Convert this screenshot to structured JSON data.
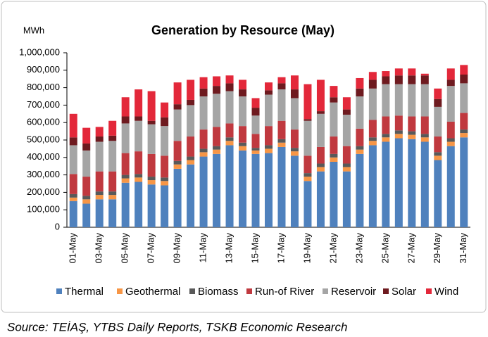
{
  "chart_data": {
    "type": "stacked_bar",
    "title": "Generation by Resource (May)",
    "ylabel": "MWh",
    "source": "Source: TEİAŞ, YTBS Daily Reports, TSKB Economic Research",
    "categories": [
      "01-May",
      null,
      "03-May",
      null,
      "05-May",
      null,
      "07-May",
      null,
      "09-May",
      null,
      "11-May",
      null,
      "13-May",
      null,
      "15-May",
      null,
      "17-May",
      null,
      "19-May",
      null,
      "21-May",
      null,
      "23-May",
      null,
      "25-May",
      null,
      "27-May",
      null,
      "29-May",
      null,
      "31-May"
    ],
    "ylim": [
      0,
      1000000
    ],
    "yticks": [
      0,
      {
        "value": 100000,
        "label": "100,000"
      },
      {
        "value": 200000,
        "label": "200,000"
      },
      {
        "value": 300000,
        "label": "300,000"
      },
      {
        "value": 400000,
        "label": "400,000"
      },
      {
        "value": 500000,
        "label": "500,000"
      },
      {
        "value": 600000,
        "label": "600,000"
      },
      {
        "value": 700000,
        "label": "700,000"
      },
      {
        "value": 800000,
        "label": "800,000"
      },
      {
        "value": 900000,
        "label": "900,000"
      },
      {
        "value": 1000000,
        "label": "1,000,000"
      }
    ],
    "grid": false,
    "legend": "bottom",
    "series": [
      {
        "name": "Thermal",
        "color": "#4f81bd",
        "values": [
          150000,
          135000,
          160000,
          160000,
          255000,
          260000,
          245000,
          240000,
          335000,
          360000,
          405000,
          420000,
          470000,
          440000,
          420000,
          425000,
          460000,
          410000,
          265000,
          320000,
          375000,
          320000,
          420000,
          470000,
          490000,
          510000,
          505000,
          490000,
          385000,
          465000,
          515000
        ]
      },
      {
        "name": "Geothermal",
        "color": "#f79646",
        "values": [
          20000,
          25000,
          25000,
          25000,
          25000,
          25000,
          25000,
          25000,
          25000,
          25000,
          25000,
          25000,
          25000,
          25000,
          20000,
          25000,
          25000,
          25000,
          25000,
          25000,
          25000,
          25000,
          25000,
          25000,
          25000,
          25000,
          25000,
          25000,
          25000,
          25000,
          25000
        ]
      },
      {
        "name": "Biomass",
        "color": "#595959",
        "values": [
          20000,
          20000,
          20000,
          20000,
          20000,
          20000,
          20000,
          20000,
          20000,
          20000,
          20000,
          20000,
          20000,
          20000,
          15000,
          20000,
          20000,
          20000,
          20000,
          20000,
          20000,
          20000,
          20000,
          20000,
          20000,
          20000,
          20000,
          20000,
          20000,
          20000,
          20000
        ]
      },
      {
        "name": "Run-of River",
        "color": "#c0393f",
        "values": [
          115000,
          110000,
          115000,
          115000,
          125000,
          130000,
          130000,
          125000,
          115000,
          115000,
          110000,
          110000,
          80000,
          95000,
          80000,
          110000,
          105000,
          105000,
          100000,
          95000,
          100000,
          100000,
          100000,
          100000,
          100000,
          85000,
          85000,
          100000,
          90000,
          95000,
          95000
        ]
      },
      {
        "name": "Reservoir",
        "color": "#a5a5a5",
        "values": [
          165000,
          150000,
          170000,
          175000,
          170000,
          175000,
          170000,
          170000,
          180000,
          180000,
          190000,
          190000,
          185000,
          170000,
          105000,
          180000,
          180000,
          180000,
          200000,
          190000,
          195000,
          180000,
          185000,
          180000,
          185000,
          180000,
          185000,
          185000,
          170000,
          205000,
          170000
        ]
      },
      {
        "name": "Solar",
        "color": "#6e1a1f",
        "values": [
          45000,
          40000,
          30000,
          30000,
          40000,
          25000,
          20000,
          50000,
          30000,
          30000,
          45000,
          45000,
          45000,
          40000,
          45000,
          25000,
          35000,
          50000,
          10000,
          15000,
          30000,
          30000,
          45000,
          50000,
          45000,
          50000,
          50000,
          50000,
          45000,
          35000,
          50000
        ]
      },
      {
        "name": "Wind",
        "color": "#e3283a",
        "values": [
          135000,
          90000,
          55000,
          85000,
          110000,
          155000,
          170000,
          85000,
          125000,
          115000,
          65000,
          55000,
          45000,
          55000,
          55000,
          45000,
          35000,
          80000,
          200000,
          180000,
          65000,
          70000,
          60000,
          45000,
          30000,
          40000,
          40000,
          10000,
          60000,
          65000,
          55000
        ]
      }
    ]
  }
}
